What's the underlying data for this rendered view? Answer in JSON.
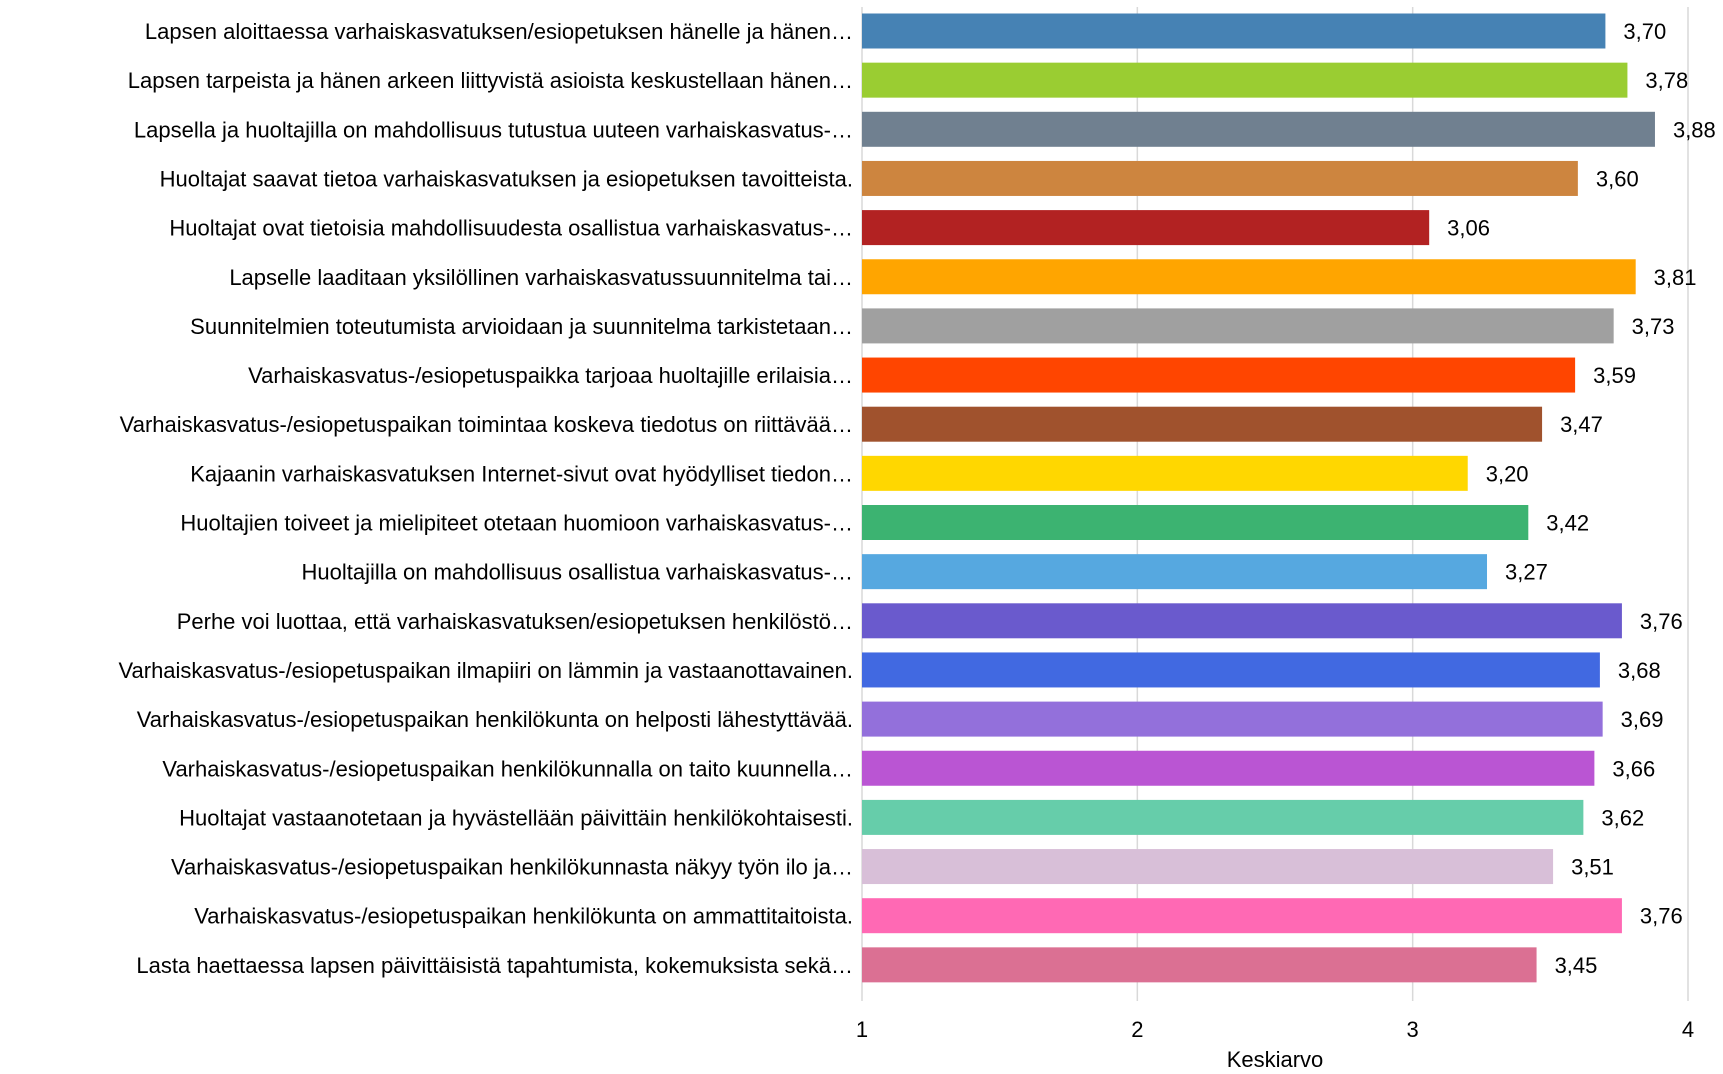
{
  "chart_data": {
    "type": "bar",
    "orientation": "horizontal",
    "categories": [
      "Lapsen aloittaessa varhaiskasvatuksen/esiopetuksen hänelle ja hänen…",
      "Lapsen tarpeista ja hänen arkeen liittyvistä asioista keskustellaan hänen…",
      "Lapsella ja huoltajilla on mahdollisuus tutustua uuteen varhaiskasvatus-…",
      "Huoltajat saavat tietoa varhaiskasvatuksen ja esiopetuksen tavoitteista.",
      "Huoltajat ovat tietoisia mahdollisuudesta osallistua varhaiskasvatus-…",
      "Lapselle laaditaan yksilöllinen varhaiskasvatussuunnitelma tai…",
      "Suunnitelmien toteutumista arvioidaan ja suunnitelma tarkistetaan…",
      "Varhaiskasvatus-/esiopetuspaikka tarjoaa huoltajille erilaisia…",
      "Varhaiskasvatus-/esiopetuspaikan toimintaa koskeva tiedotus on riittävää…",
      "Kajaanin varhaiskasvatuksen Internet-sivut ovat hyödylliset tiedon…",
      "Huoltajien toiveet ja mielipiteet otetaan huomioon varhaiskasvatus-…",
      "Huoltajilla on mahdollisuus osallistua varhaiskasvatus-…",
      "Perhe voi luottaa, että varhaiskasvatuksen/esiopetuksen henkilöstö…",
      "Varhaiskasvatus-/esiopetuspaikan ilmapiiri on lämmin ja vastaanottavainen.",
      "Varhaiskasvatus-/esiopetuspaikan henkilökunta on helposti lähestyttävää.",
      "Varhaiskasvatus-/esiopetuspaikan henkilökunnalla on taito kuunnella…",
      "Huoltajat vastaanotetaan ja hyvästellään päivittäin henkilökohtaisesti.",
      "Varhaiskasvatus-/esiopetuspaikan henkilökunnasta näkyy työn ilo ja…",
      "Varhaiskasvatus-/esiopetuspaikan henkilökunta on ammattitaitoista.",
      "Lasta haettaessa lapsen päivittäisistä tapahtumista, kokemuksista sekä…"
    ],
    "values": [
      3.7,
      3.78,
      3.88,
      3.6,
      3.06,
      3.81,
      3.73,
      3.59,
      3.47,
      3.2,
      3.42,
      3.27,
      3.76,
      3.68,
      3.69,
      3.66,
      3.62,
      3.51,
      3.76,
      3.45
    ],
    "value_labels": [
      "3,70",
      "3,78",
      "3,88",
      "3,60",
      "3,06",
      "3,81",
      "3,73",
      "3,59",
      "3,47",
      "3,20",
      "3,42",
      "3,27",
      "3,76",
      "3,68",
      "3,69",
      "3,66",
      "3,62",
      "3,51",
      "3,76",
      "3,45"
    ],
    "colors": [
      "#4682B4",
      "#9ACD32",
      "#708090",
      "#CD853F",
      "#B22222",
      "#FFA500",
      "#A0A0A0",
      "#FF4500",
      "#A0522D",
      "#FFD700",
      "#3CB371",
      "#56A8E0",
      "#6A5ACD",
      "#4169E1",
      "#9370DB",
      "#BA55D3",
      "#66CDAA",
      "#D8BFD8",
      "#FF69B4",
      "#DB7093"
    ],
    "xlabel": "Keskiarvo",
    "ylabel": "",
    "xlim": [
      1,
      4
    ],
    "xticks": [
      1,
      2,
      3,
      4
    ],
    "xtick_labels": [
      "1",
      "2",
      "3",
      "4"
    ],
    "grid": "vertical",
    "gridline_color": "#d9d9d9",
    "legend": "none"
  }
}
